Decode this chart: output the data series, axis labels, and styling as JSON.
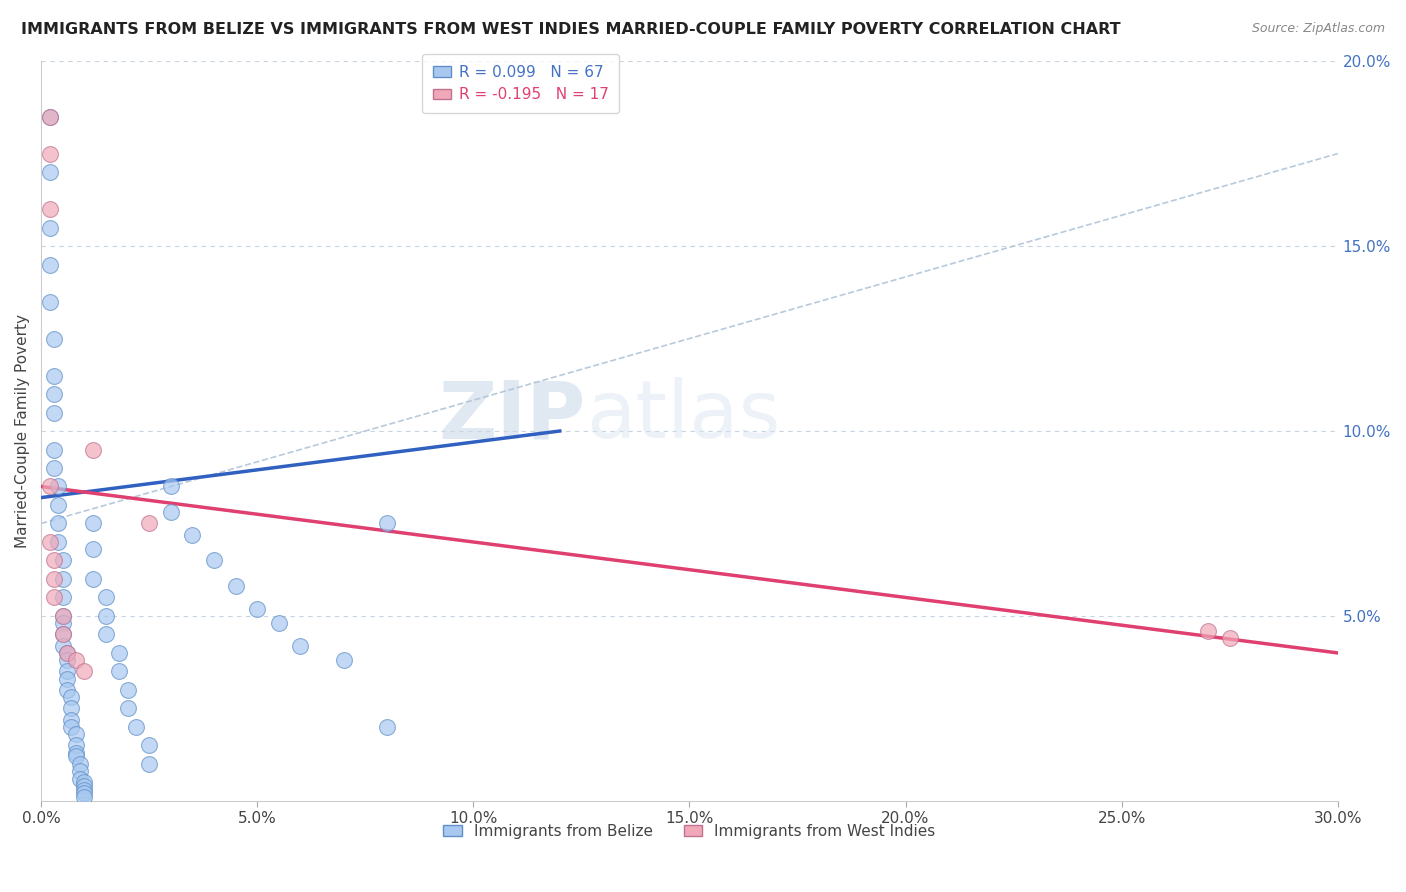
{
  "title": "IMMIGRANTS FROM BELIZE VS IMMIGRANTS FROM WEST INDIES MARRIED-COUPLE FAMILY POVERTY CORRELATION CHART",
  "source": "Source: ZipAtlas.com",
  "ylabel": "Married-Couple Family Poverty",
  "xlim": [
    0.0,
    0.3
  ],
  "ylim": [
    0.0,
    0.2
  ],
  "xtick_labels": [
    "0.0%",
    "5.0%",
    "10.0%",
    "15.0%",
    "20.0%",
    "25.0%",
    "30.0%"
  ],
  "xtick_vals": [
    0.0,
    0.05,
    0.1,
    0.15,
    0.2,
    0.25,
    0.3
  ],
  "ytick_labels_right": [
    "20.0%",
    "15.0%",
    "10.0%",
    "5.0%"
  ],
  "ytick_vals_right": [
    0.2,
    0.15,
    0.1,
    0.05
  ],
  "legend_entry1": "R = 0.099   N = 67",
  "legend_entry2": "R = -0.195   N = 17",
  "color_blue": "#a8c8f0",
  "color_pink": "#f0a8b8",
  "color_blue_line": "#3060c0",
  "color_pink_line": "#e04070",
  "color_dashed": "#b0c4d8",
  "watermark_zip": "ZIP",
  "watermark_atlas": "atlas",
  "belize_x": [
    0.002,
    0.002,
    0.002,
    0.002,
    0.002,
    0.003,
    0.003,
    0.003,
    0.003,
    0.003,
    0.003,
    0.004,
    0.004,
    0.004,
    0.004,
    0.005,
    0.005,
    0.005,
    0.005,
    0.005,
    0.005,
    0.005,
    0.006,
    0.006,
    0.006,
    0.006,
    0.006,
    0.007,
    0.007,
    0.007,
    0.007,
    0.008,
    0.008,
    0.008,
    0.008,
    0.009,
    0.009,
    0.009,
    0.01,
    0.01,
    0.01,
    0.01,
    0.01,
    0.012,
    0.012,
    0.012,
    0.015,
    0.015,
    0.015,
    0.018,
    0.018,
    0.02,
    0.02,
    0.022,
    0.025,
    0.025,
    0.03,
    0.03,
    0.035,
    0.04,
    0.045,
    0.05,
    0.055,
    0.06,
    0.07,
    0.08,
    0.08
  ],
  "belize_y": [
    0.185,
    0.17,
    0.155,
    0.145,
    0.135,
    0.125,
    0.115,
    0.11,
    0.105,
    0.095,
    0.09,
    0.085,
    0.08,
    0.075,
    0.07,
    0.065,
    0.06,
    0.055,
    0.05,
    0.048,
    0.045,
    0.042,
    0.04,
    0.038,
    0.035,
    0.033,
    0.03,
    0.028,
    0.025,
    0.022,
    0.02,
    0.018,
    0.015,
    0.013,
    0.012,
    0.01,
    0.008,
    0.006,
    0.005,
    0.004,
    0.003,
    0.002,
    0.001,
    0.075,
    0.068,
    0.06,
    0.055,
    0.05,
    0.045,
    0.04,
    0.035,
    0.03,
    0.025,
    0.02,
    0.015,
    0.01,
    0.085,
    0.078,
    0.072,
    0.065,
    0.058,
    0.052,
    0.048,
    0.042,
    0.038,
    0.075,
    0.02
  ],
  "westindies_x": [
    0.002,
    0.002,
    0.002,
    0.002,
    0.002,
    0.003,
    0.003,
    0.003,
    0.005,
    0.005,
    0.006,
    0.008,
    0.01,
    0.012,
    0.025,
    0.27,
    0.275
  ],
  "westindies_y": [
    0.185,
    0.175,
    0.16,
    0.085,
    0.07,
    0.065,
    0.06,
    0.055,
    0.05,
    0.045,
    0.04,
    0.038,
    0.035,
    0.095,
    0.075,
    0.046,
    0.044
  ],
  "blue_line_x": [
    0.0,
    0.12
  ],
  "blue_line_y": [
    0.082,
    0.1
  ],
  "pink_line_x": [
    0.0,
    0.3
  ],
  "pink_line_y": [
    0.085,
    0.04
  ],
  "dashed_line_x": [
    0.0,
    0.3
  ],
  "dashed_line_y": [
    0.075,
    0.175
  ],
  "figsize": [
    14.06,
    8.92
  ],
  "dpi": 100
}
